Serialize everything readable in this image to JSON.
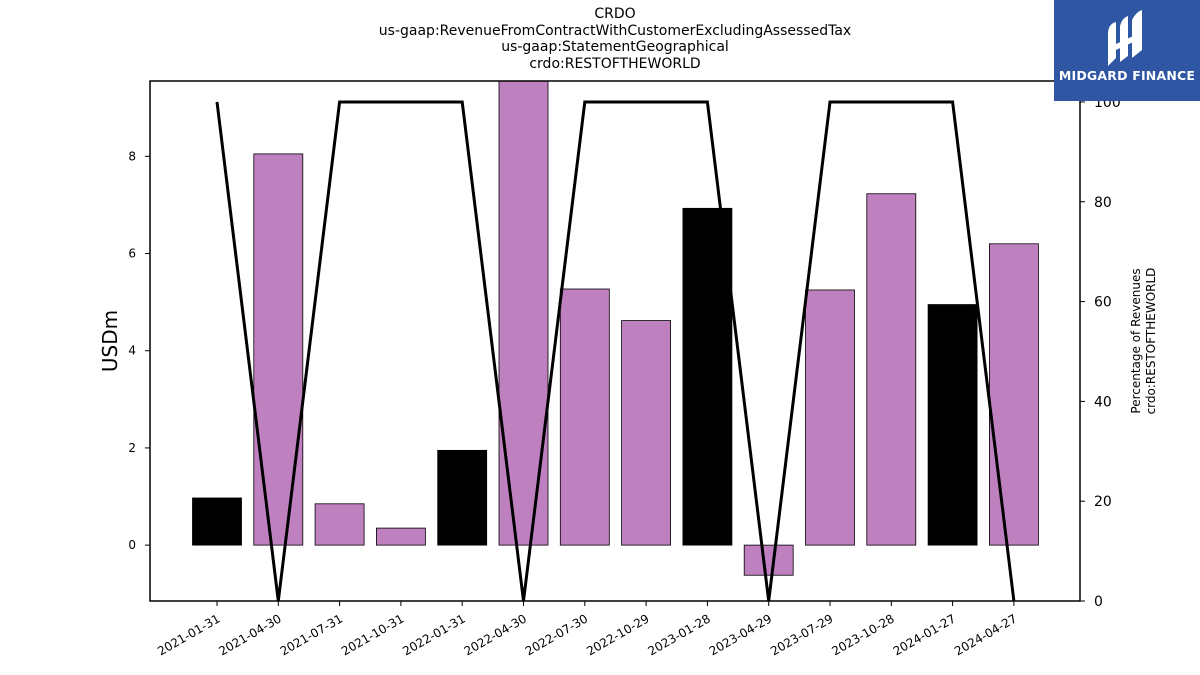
{
  "title_lines": [
    "CRDO",
    "us-gaap:RevenueFromContractWithCustomerExcludingAssessedTax",
    "us-gaap:StatementGeographical",
    "crdo:RESTOFTHEWORLD"
  ],
  "logo": {
    "text": "MIDGARD FINANCE",
    "bg": "#2f56a3"
  },
  "chart_data": {
    "type": "bar",
    "categories": [
      "2021-01-31",
      "2021-04-30",
      "2021-07-31",
      "2021-10-31",
      "2022-01-31",
      "2022-04-30",
      "2022-07-30",
      "2022-10-29",
      "2023-01-28",
      "2023-04-29",
      "2023-07-29",
      "2023-10-28",
      "2024-01-27",
      "2024-04-27"
    ],
    "values": [
      0.97,
      8.05,
      0.85,
      0.35,
      1.95,
      9.9,
      5.27,
      4.62,
      6.93,
      -0.62,
      5.25,
      7.23,
      4.95,
      6.2
    ],
    "bar_colors": [
      "#000000",
      "#bf80bf",
      "#bf80bf",
      "#bf80bf",
      "#000000",
      "#bf80bf",
      "#bf80bf",
      "#bf80bf",
      "#000000",
      "#bf80bf",
      "#bf80bf",
      "#bf80bf",
      "#000000",
      "#bf80bf"
    ],
    "ylabel": "USDm",
    "ylim": [
      -1.15,
      9.55
    ],
    "yticks": [
      0,
      2,
      4,
      6,
      8
    ],
    "secondary_axis": {
      "label_lines": [
        "Percentage of Revenues",
        "crdo:RESTOFTHEWORLD"
      ],
      "values": [
        100,
        0,
        100,
        100,
        100,
        0,
        100,
        100,
        100,
        0,
        100,
        100,
        100,
        0
      ],
      "ylim": [
        0,
        104.2
      ],
      "yticks": [
        0,
        20,
        40,
        60,
        80,
        100
      ],
      "line_color": "#000000"
    },
    "grid": false,
    "legend": "none"
  }
}
